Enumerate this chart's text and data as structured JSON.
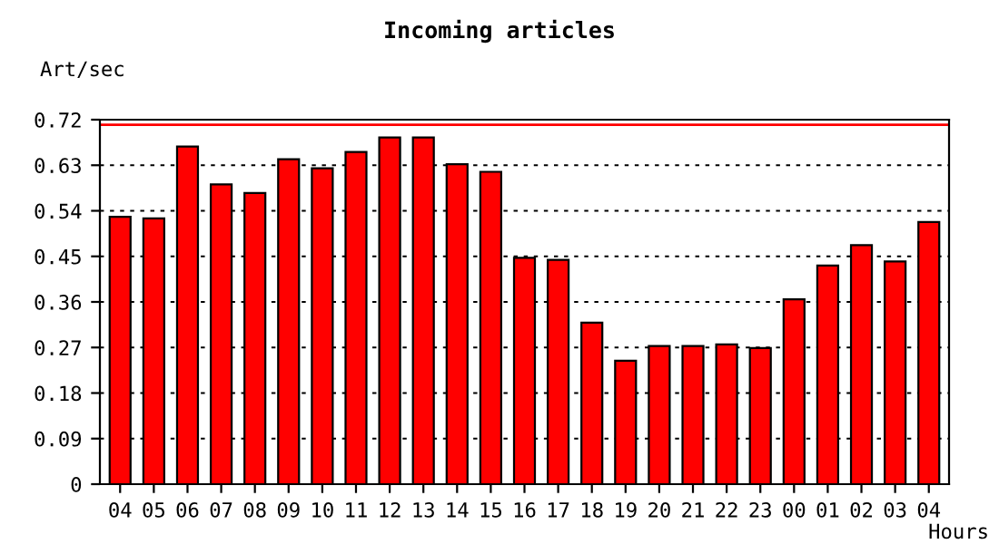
{
  "chart_data": {
    "type": "bar",
    "title": "Incoming articles",
    "xlabel": "Hours",
    "ylabel": "Art/sec",
    "categories": [
      "04",
      "05",
      "06",
      "07",
      "08",
      "09",
      "10",
      "11",
      "12",
      "13",
      "14",
      "15",
      "16",
      "17",
      "18",
      "19",
      "20",
      "21",
      "22",
      "23",
      "00",
      "01",
      "02",
      "03",
      "04"
    ],
    "values": [
      0.528,
      0.525,
      0.667,
      0.592,
      0.575,
      0.642,
      0.624,
      0.656,
      0.685,
      0.685,
      0.632,
      0.617,
      0.447,
      0.443,
      0.319,
      0.244,
      0.273,
      0.273,
      0.276,
      0.269,
      0.365,
      0.432,
      0.472,
      0.44,
      0.518
    ],
    "color": "#ff0000",
    "ylim": [
      0,
      0.72
    ],
    "yticks": [
      0,
      0.09,
      0.18,
      0.27,
      0.36,
      0.45,
      0.54,
      0.63,
      0.72
    ],
    "grid": "y",
    "ref_lines": [
      {
        "axis": "y",
        "value": 0.71,
        "color": "#ff0000"
      }
    ]
  }
}
